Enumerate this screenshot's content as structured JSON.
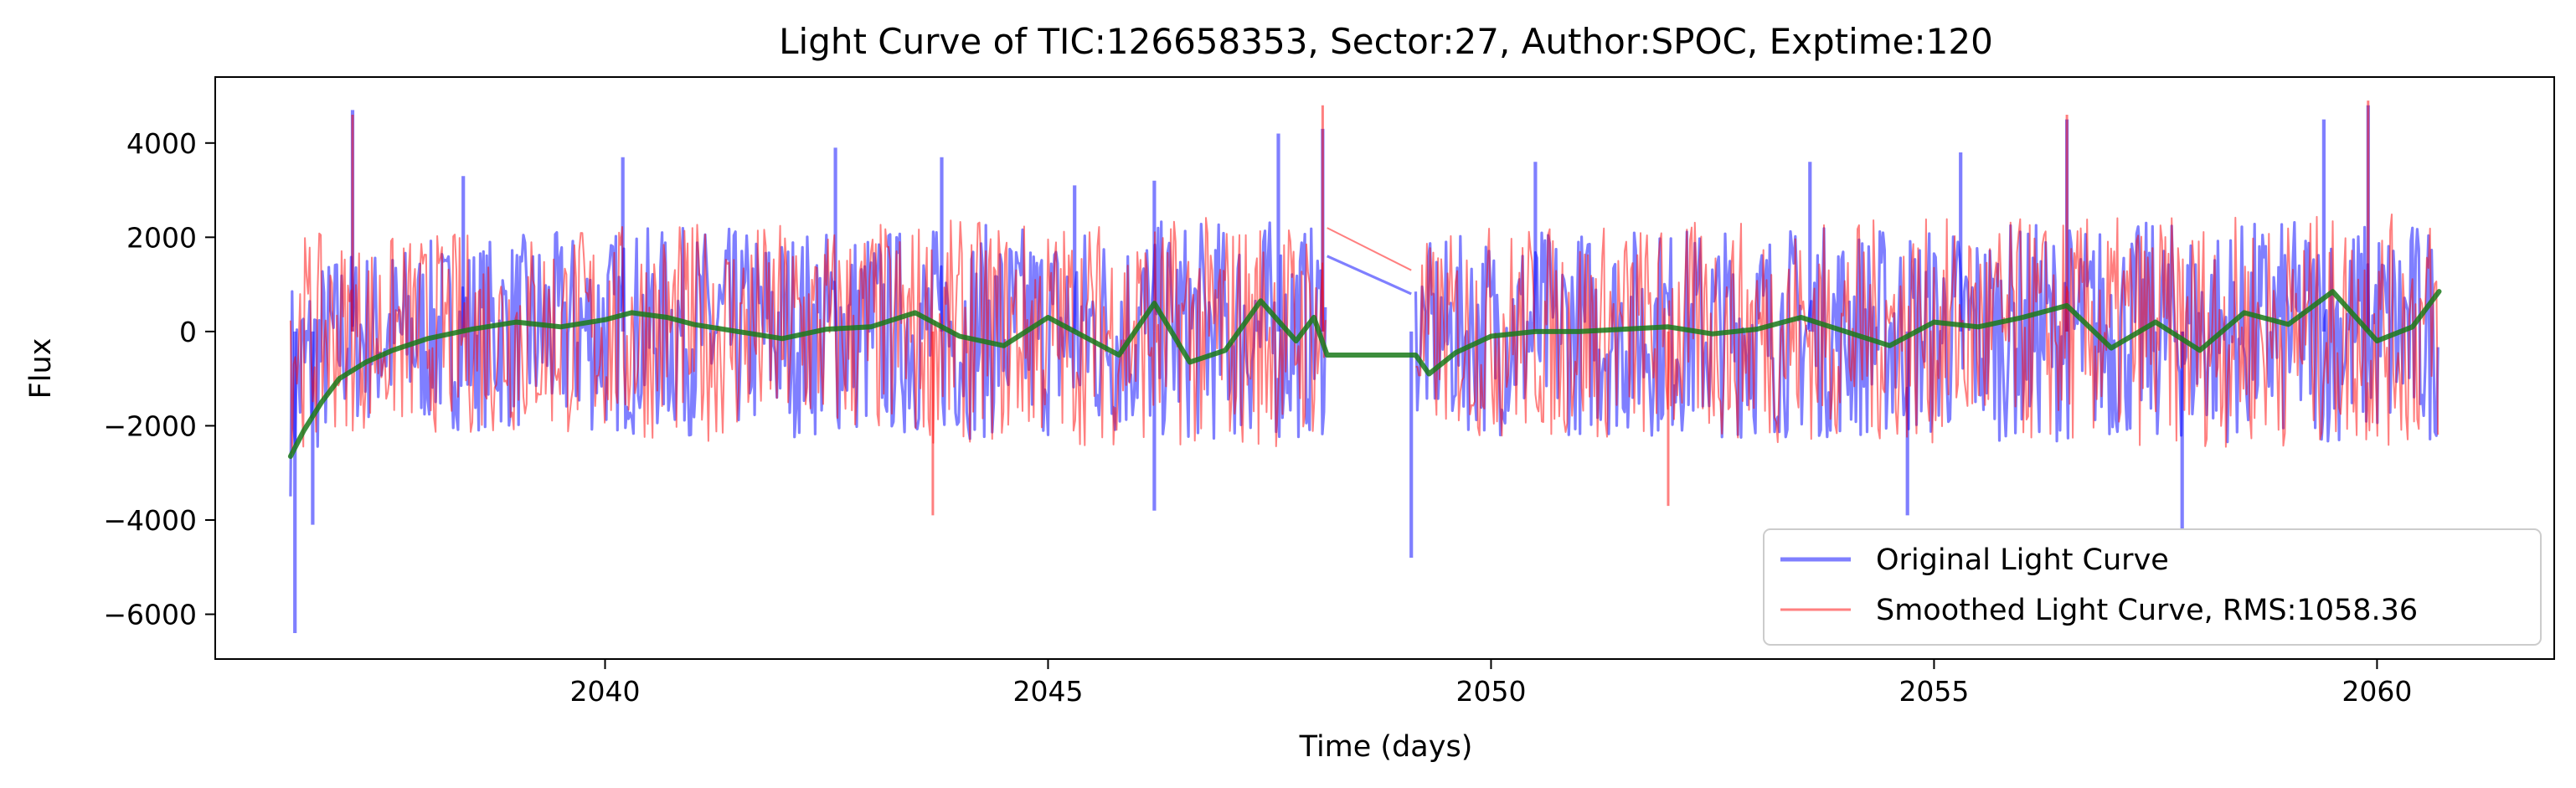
{
  "chart_data": {
    "type": "line",
    "title": "Light Curve of TIC:126658353, Sector:27, Author:SPOC, Exptime:120",
    "xlabel": "Time (days)",
    "ylabel": "Flux",
    "xlim": [
      2035.6,
      2062.0
    ],
    "ylim": [
      -6950,
      5400
    ],
    "xticks": [
      2040,
      2045,
      2050,
      2055,
      2060
    ],
    "xtick_labels": [
      "2040",
      "2045",
      "2050",
      "2055",
      "2060"
    ],
    "yticks": [
      4000,
      2000,
      0,
      -2000,
      -4000,
      -6000
    ],
    "ytick_labels": [
      "4000",
      "2000",
      "0",
      "−2000",
      "−4000",
      "−6000"
    ],
    "grid": false,
    "legend_position": "lower-right",
    "segments": [
      [
        2036.45,
        2048.15
      ],
      [
        2049.15,
        2060.7
      ]
    ],
    "series": [
      {
        "name": "Original Light Curve",
        "color": "#0000ff",
        "alpha": 0.5,
        "style": "thick",
        "envelope_high": [
          [
            2036.45,
            1200
          ],
          [
            2037.0,
            1800
          ],
          [
            2040.0,
            2200
          ],
          [
            2045.0,
            2300
          ],
          [
            2047.5,
            2400
          ],
          [
            2048.15,
            2200
          ],
          [
            2049.15,
            1800
          ],
          [
            2050.0,
            2200
          ],
          [
            2055.0,
            2300
          ],
          [
            2060.7,
            2400
          ]
        ],
        "envelope_low": [
          [
            2036.45,
            -3500
          ],
          [
            2037.0,
            -2000
          ],
          [
            2040.0,
            -2200
          ],
          [
            2045.0,
            -2300
          ],
          [
            2047.5,
            -2400
          ],
          [
            2048.15,
            -2200
          ],
          [
            2049.15,
            -2000
          ],
          [
            2050.0,
            -2200
          ],
          [
            2055.0,
            -2300
          ],
          [
            2060.7,
            -2400
          ]
        ],
        "extremes": [
          [
            2036.5,
            -6400
          ],
          [
            2036.7,
            -4100
          ],
          [
            2037.15,
            4700
          ],
          [
            2038.4,
            3300
          ],
          [
            2040.2,
            3700
          ],
          [
            2042.6,
            3900
          ],
          [
            2043.8,
            3700
          ],
          [
            2045.3,
            3100
          ],
          [
            2046.2,
            3200
          ],
          [
            2047.6,
            4200
          ],
          [
            2048.1,
            4300
          ],
          [
            2049.1,
            -4800
          ],
          [
            2050.5,
            3600
          ],
          [
            2053.6,
            3600
          ],
          [
            2055.3,
            3800
          ],
          [
            2056.5,
            4500
          ],
          [
            2057.8,
            -4200
          ],
          [
            2059.4,
            4500
          ],
          [
            2059.9,
            4800
          ],
          [
            2046.2,
            -3800
          ],
          [
            2054.7,
            -3900
          ]
        ],
        "gap_bridge": [
          [
            2048.15,
            1600
          ],
          [
            2049.1,
            800
          ]
        ]
      },
      {
        "name": "Smoothed Light Curve, RMS:1058.36",
        "color": "#ff0000",
        "alpha": 0.5,
        "style": "thin",
        "envelope_high": [
          [
            2036.45,
            2200
          ],
          [
            2037.0,
            2000
          ],
          [
            2040.0,
            2300
          ],
          [
            2045.0,
            2400
          ],
          [
            2047.5,
            2500
          ],
          [
            2048.15,
            2300
          ],
          [
            2049.15,
            1900
          ],
          [
            2050.0,
            2300
          ],
          [
            2055.0,
            2400
          ],
          [
            2060.7,
            2500
          ]
        ],
        "envelope_low": [
          [
            2036.45,
            -2600
          ],
          [
            2037.0,
            -2100
          ],
          [
            2040.0,
            -2300
          ],
          [
            2045.0,
            -2400
          ],
          [
            2047.5,
            -2500
          ],
          [
            2048.15,
            -2300
          ],
          [
            2049.15,
            -2100
          ],
          [
            2050.0,
            -2300
          ],
          [
            2055.0,
            -2400
          ],
          [
            2060.7,
            -2500
          ]
        ],
        "extremes": [
          [
            2037.15,
            4600
          ],
          [
            2048.1,
            4800
          ],
          [
            2056.5,
            4600
          ],
          [
            2059.9,
            4900
          ],
          [
            2043.7,
            -3900
          ],
          [
            2052.0,
            -3700
          ]
        ],
        "gap_bridge": [
          [
            2048.15,
            2200
          ],
          [
            2049.1,
            1300
          ]
        ]
      },
      {
        "name": "",
        "color": "#1a7a1a",
        "alpha": 0.85,
        "style": "trend",
        "points": [
          [
            2036.45,
            -2650
          ],
          [
            2036.6,
            -2100
          ],
          [
            2036.8,
            -1500
          ],
          [
            2037.0,
            -1000
          ],
          [
            2037.3,
            -650
          ],
          [
            2037.6,
            -400
          ],
          [
            2038.0,
            -150
          ],
          [
            2038.5,
            50
          ],
          [
            2039.0,
            200
          ],
          [
            2039.5,
            100
          ],
          [
            2040.0,
            250
          ],
          [
            2040.3,
            400
          ],
          [
            2040.7,
            300
          ],
          [
            2041.0,
            150
          ],
          [
            2041.5,
            0
          ],
          [
            2042.0,
            -150
          ],
          [
            2042.5,
            50
          ],
          [
            2043.0,
            100
          ],
          [
            2043.5,
            400
          ],
          [
            2044.0,
            -100
          ],
          [
            2044.5,
            -300
          ],
          [
            2045.0,
            300
          ],
          [
            2045.5,
            -200
          ],
          [
            2045.8,
            -500
          ],
          [
            2046.2,
            600
          ],
          [
            2046.6,
            -650
          ],
          [
            2047.0,
            -400
          ],
          [
            2047.4,
            650
          ],
          [
            2047.8,
            -200
          ],
          [
            2048.0,
            300
          ],
          [
            2048.15,
            -500
          ],
          [
            2049.15,
            -500
          ],
          [
            2049.3,
            -900
          ],
          [
            2049.6,
            -450
          ],
          [
            2050.0,
            -100
          ],
          [
            2050.5,
            0
          ],
          [
            2051.0,
            0
          ],
          [
            2051.5,
            50
          ],
          [
            2052.0,
            100
          ],
          [
            2052.5,
            -50
          ],
          [
            2053.0,
            50
          ],
          [
            2053.5,
            300
          ],
          [
            2054.0,
            0
          ],
          [
            2054.5,
            -300
          ],
          [
            2055.0,
            200
          ],
          [
            2055.5,
            100
          ],
          [
            2056.0,
            300
          ],
          [
            2056.5,
            550
          ],
          [
            2057.0,
            -350
          ],
          [
            2057.5,
            200
          ],
          [
            2058.0,
            -400
          ],
          [
            2058.5,
            400
          ],
          [
            2059.0,
            150
          ],
          [
            2059.5,
            850
          ],
          [
            2060.0,
            -200
          ],
          [
            2060.4,
            100
          ],
          [
            2060.7,
            850
          ]
        ]
      }
    ]
  }
}
